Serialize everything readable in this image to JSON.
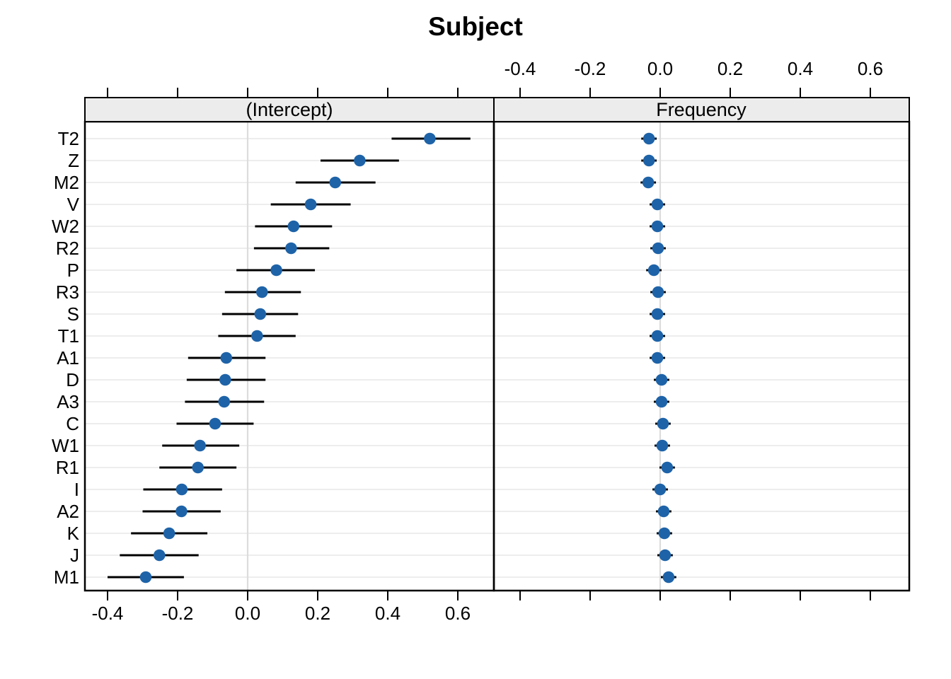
{
  "title": "Subject",
  "colors": {
    "point": "#1e63a8",
    "interval": "#000000",
    "strip_bg": "#ececec",
    "grid": "#e7e7e7",
    "zero_line": "#dcdcdc",
    "border": "#000000",
    "background": "#ffffff"
  },
  "chart_data": {
    "type": "scatter",
    "subtype": "dotplot-with-intervals",
    "title": "Subject",
    "x_axis": {
      "ticks": [
        -0.4,
        -0.2,
        0.0,
        0.2,
        0.4,
        0.6
      ],
      "tick_labels": [
        "-0.4",
        "-0.2",
        "0.0",
        "0.2",
        "0.4",
        "0.6"
      ],
      "xlim": [
        -0.465,
        0.71
      ]
    },
    "grid": true,
    "reference_line_x": 0,
    "legend": "none",
    "categories": [
      "T2",
      "Z",
      "M2",
      "V",
      "W2",
      "R2",
      "P",
      "R3",
      "S",
      "T1",
      "A1",
      "D",
      "A3",
      "C",
      "W1",
      "R1",
      "I",
      "A2",
      "K",
      "J",
      "M1"
    ],
    "panels": [
      {
        "label": "(Intercept)",
        "axis_labels_top": false,
        "axis_labels_bottom": true
      },
      {
        "label": "Frequency",
        "axis_labels_top": true,
        "axis_labels_bottom": false
      }
    ],
    "series": [
      {
        "panel": "(Intercept)",
        "est": [
          0.52,
          0.32,
          0.25,
          0.18,
          0.131,
          0.124,
          0.082,
          0.041,
          0.036,
          0.027,
          -0.061,
          -0.064,
          -0.067,
          -0.093,
          -0.136,
          -0.142,
          -0.188,
          -0.189,
          -0.224,
          -0.252,
          -0.291
        ],
        "lo": [
          0.411,
          0.208,
          0.137,
          0.066,
          0.021,
          0.018,
          -0.032,
          -0.065,
          -0.073,
          -0.084,
          -0.17,
          -0.174,
          -0.179,
          -0.203,
          -0.244,
          -0.252,
          -0.298,
          -0.3,
          -0.333,
          -0.365,
          -0.4
        ],
        "hi": [
          0.636,
          0.432,
          0.365,
          0.294,
          0.241,
          0.233,
          0.192,
          0.152,
          0.144,
          0.137,
          0.051,
          0.051,
          0.047,
          0.017,
          -0.024,
          -0.032,
          -0.073,
          -0.077,
          -0.115,
          -0.14,
          -0.182
        ]
      },
      {
        "panel": "Frequency",
        "est": [
          -0.032,
          -0.032,
          -0.034,
          -0.008,
          -0.008,
          -0.006,
          -0.018,
          -0.006,
          -0.008,
          -0.008,
          -0.008,
          0.004,
          0.004,
          0.008,
          0.006,
          0.02,
          0.0,
          0.01,
          0.012,
          0.014,
          0.024
        ],
        "lo": [
          -0.054,
          -0.054,
          -0.056,
          -0.03,
          -0.03,
          -0.028,
          -0.04,
          -0.028,
          -0.03,
          -0.03,
          -0.03,
          -0.018,
          -0.018,
          -0.014,
          -0.016,
          -0.002,
          -0.022,
          -0.012,
          -0.01,
          -0.008,
          0.002
        ],
        "hi": [
          -0.01,
          -0.01,
          -0.012,
          0.014,
          0.014,
          0.016,
          0.004,
          0.016,
          0.014,
          0.014,
          0.014,
          0.026,
          0.026,
          0.03,
          0.028,
          0.042,
          0.022,
          0.032,
          0.034,
          0.036,
          0.046
        ]
      }
    ]
  }
}
